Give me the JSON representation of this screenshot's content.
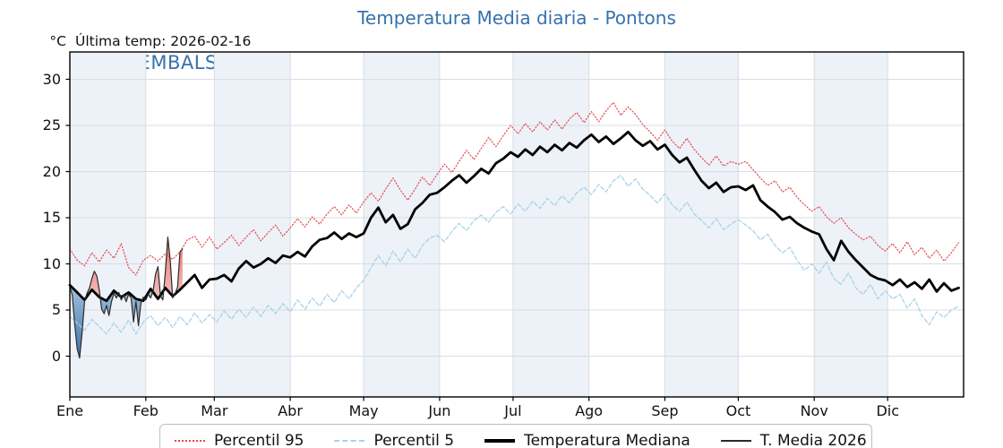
{
  "header": {
    "title": "Temperatura Media diaria - Pontons",
    "unit_label": "°C",
    "last_temp_label": "Última temp: 2026-02-16",
    "watermark": "WWW.EMBALSES.NET"
  },
  "legend": {
    "items": [
      {
        "id": "percentil95",
        "label": "Percentil 95",
        "marker": {
          "style": "dotted",
          "color": "#e3494e",
          "thickness": 2
        }
      },
      {
        "id": "percentil5",
        "label": "Percentil 5",
        "marker": {
          "style": "dashed",
          "color": "#a8d3e7",
          "thickness": 2
        }
      },
      {
        "id": "mediana",
        "label": "Temperatura Mediana",
        "marker": {
          "style": "solid",
          "color": "#000000",
          "thickness": 4
        }
      },
      {
        "id": "t2026",
        "label": "T. Media 2026",
        "marker": {
          "style": "solid",
          "color": "#2b2b2b",
          "thickness": 2
        }
      }
    ]
  },
  "chart_data": {
    "type": "line",
    "title": "Temperatura Media diaria - Pontons",
    "ylabel": "°C",
    "xlabel": "",
    "ylim": [
      -4.4,
      33
    ],
    "xlim_days": [
      0,
      365
    ],
    "y_ticks": [
      0,
      5,
      10,
      15,
      20,
      25,
      30
    ],
    "grid": true,
    "legend_position": "bottom",
    "months": [
      {
        "label": "Ene",
        "start_day": 0
      },
      {
        "label": "Feb",
        "start_day": 31
      },
      {
        "label": "Mar",
        "start_day": 59
      },
      {
        "label": "Abr",
        "start_day": 90
      },
      {
        "label": "May",
        "start_day": 120
      },
      {
        "label": "Jun",
        "start_day": 151
      },
      {
        "label": "Jul",
        "start_day": 181
      },
      {
        "label": "Ago",
        "start_day": 212
      },
      {
        "label": "Sep",
        "start_day": 243
      },
      {
        "label": "Oct",
        "start_day": 273
      },
      {
        "label": "Nov",
        "start_day": 304
      },
      {
        "label": "Dic",
        "start_day": 334
      }
    ],
    "shaded_month_indexes": [
      0,
      2,
      4,
      6,
      8,
      10
    ],
    "colors": {
      "band": "#edf1f8",
      "grid": "#d9dde2",
      "title": "#3572ae",
      "watermark": "#3572ae",
      "fill_above_top": "#df5a55",
      "fill_above_bottom": "#f6c6c4",
      "fill_below_top": "#a6c4de",
      "fill_below_bottom": "#1f5c9e"
    },
    "climatology_days": [
      0,
      3,
      6,
      9,
      12,
      15,
      18,
      21,
      24,
      27,
      30,
      33,
      36,
      39,
      42,
      45,
      48,
      51,
      54,
      57,
      60,
      63,
      66,
      69,
      72,
      75,
      78,
      81,
      84,
      87,
      90,
      93,
      96,
      99,
      102,
      105,
      108,
      111,
      114,
      117,
      120,
      123,
      126,
      129,
      132,
      135,
      138,
      141,
      144,
      147,
      150,
      153,
      156,
      159,
      162,
      165,
      168,
      171,
      174,
      177,
      180,
      183,
      186,
      189,
      192,
      195,
      198,
      201,
      204,
      207,
      210,
      213,
      216,
      219,
      222,
      225,
      228,
      231,
      234,
      237,
      240,
      243,
      246,
      249,
      252,
      255,
      258,
      261,
      264,
      267,
      270,
      273,
      276,
      279,
      282,
      285,
      288,
      291,
      294,
      297,
      300,
      303,
      306,
      309,
      312,
      315,
      318,
      321,
      324,
      327,
      330,
      333,
      336,
      339,
      342,
      345,
      348,
      351,
      354,
      357,
      360,
      363
    ],
    "series": {
      "percentil95": {
        "name": "Percentil 95",
        "color": "#e3494e",
        "width": 1.2,
        "dash": "1.2 2.3",
        "values": [
          11.6,
          10.4,
          9.8,
          11.2,
          10.2,
          11.5,
          10.6,
          12.2,
          9.6,
          8.8,
          10.4,
          10.9,
          10.3,
          11.1,
          10.5,
          11.3,
          12.6,
          13.0,
          11.8,
          12.9,
          11.6,
          12.3,
          13.1,
          12.0,
          12.9,
          13.7,
          12.5,
          13.4,
          14.2,
          13.0,
          13.9,
          14.9,
          14.0,
          15.1,
          14.3,
          15.4,
          16.2,
          15.3,
          16.4,
          15.5,
          16.7,
          17.7,
          16.8,
          18.1,
          19.3,
          18.0,
          16.9,
          18.1,
          19.4,
          18.5,
          19.7,
          20.8,
          19.9,
          21.1,
          22.3,
          21.3,
          22.5,
          23.7,
          22.7,
          23.9,
          25.0,
          24.1,
          25.2,
          24.3,
          25.4,
          24.5,
          25.6,
          24.6,
          25.7,
          26.4,
          25.3,
          26.5,
          25.4,
          26.6,
          27.5,
          26.1,
          27.0,
          26.2,
          25.1,
          24.3,
          23.4,
          24.5,
          23.3,
          22.5,
          23.6,
          22.4,
          21.5,
          20.7,
          21.7,
          20.6,
          21.1,
          20.8,
          21.1,
          20.2,
          19.3,
          18.5,
          19.0,
          17.8,
          18.3,
          17.2,
          16.4,
          15.7,
          16.2,
          15.1,
          14.4,
          15.0,
          13.9,
          13.2,
          12.6,
          13.0,
          12.0,
          11.4,
          12.2,
          11.2,
          12.4,
          11.0,
          11.8,
          10.6,
          11.5,
          10.3,
          11.2,
          12.3
        ]
      },
      "percentil5": {
        "name": "Percentil 5",
        "color": "#a8d3e7",
        "width": 1.3,
        "dash": "4.5 2.6",
        "values": [
          4.3,
          3.6,
          2.8,
          4.0,
          3.2,
          2.4,
          3.6,
          2.6,
          3.9,
          2.4,
          3.7,
          4.4,
          3.3,
          4.2,
          3.1,
          4.3,
          3.4,
          4.7,
          3.6,
          4.5,
          3.7,
          4.9,
          4.0,
          5.1,
          4.2,
          5.3,
          4.3,
          5.5,
          4.6,
          5.7,
          4.8,
          6.1,
          5.1,
          6.3,
          5.4,
          6.7,
          5.8,
          7.1,
          6.2,
          7.4,
          8.2,
          9.6,
          10.9,
          9.8,
          11.4,
          10.2,
          11.6,
          10.6,
          12.0,
          12.8,
          13.1,
          12.4,
          13.5,
          14.4,
          13.6,
          14.7,
          15.3,
          14.5,
          15.6,
          16.2,
          15.4,
          16.5,
          15.7,
          16.8,
          16.0,
          17.1,
          16.3,
          17.4,
          16.6,
          17.7,
          18.3,
          17.5,
          18.6,
          17.8,
          19.0,
          19.6,
          18.4,
          19.2,
          18.1,
          17.4,
          16.6,
          17.6,
          16.4,
          15.7,
          16.7,
          15.4,
          14.7,
          13.9,
          14.9,
          13.7,
          14.3,
          14.8,
          14.2,
          13.6,
          12.6,
          13.2,
          12.0,
          11.2,
          11.8,
          10.4,
          9.3,
          10.0,
          9.0,
          10.2,
          8.4,
          7.8,
          9.0,
          7.4,
          6.7,
          7.8,
          6.2,
          7.1,
          6.2,
          6.7,
          5.2,
          6.2,
          4.4,
          3.4,
          4.8,
          4.2,
          5.0,
          5.4
        ]
      },
      "mediana": {
        "name": "Temperatura Mediana",
        "color": "#000000",
        "width": 2.8,
        "values": [
          7.7,
          6.9,
          6.1,
          7.2,
          6.4,
          6.0,
          7.1,
          6.4,
          6.9,
          6.2,
          6.0,
          7.3,
          6.2,
          7.4,
          6.5,
          7.2,
          8.0,
          8.8,
          7.4,
          8.3,
          8.4,
          8.8,
          8.1,
          9.5,
          10.3,
          9.6,
          10.0,
          10.6,
          10.1,
          10.9,
          10.7,
          11.3,
          10.8,
          11.9,
          12.6,
          12.8,
          13.4,
          12.7,
          13.3,
          12.9,
          13.3,
          15.0,
          16.1,
          14.5,
          15.3,
          13.8,
          14.3,
          15.9,
          16.6,
          17.5,
          17.7,
          18.3,
          19.0,
          19.6,
          18.8,
          19.5,
          20.3,
          19.8,
          20.9,
          21.4,
          22.1,
          21.6,
          22.4,
          21.8,
          22.7,
          22.1,
          22.9,
          22.3,
          23.1,
          22.6,
          23.4,
          24.0,
          23.2,
          23.8,
          23.0,
          23.6,
          24.3,
          23.4,
          22.8,
          23.3,
          22.4,
          22.9,
          21.8,
          21.0,
          21.5,
          20.2,
          19.0,
          18.2,
          18.8,
          17.8,
          18.3,
          18.4,
          18.0,
          18.5,
          16.9,
          16.2,
          15.6,
          14.8,
          15.1,
          14.4,
          13.9,
          13.5,
          13.2,
          11.6,
          10.4,
          12.5,
          11.3,
          10.4,
          9.6,
          8.8,
          8.4,
          8.2,
          7.7,
          8.3,
          7.5,
          8.0,
          7.3,
          8.3,
          7.0,
          7.9,
          7.1,
          7.4
        ]
      },
      "t_media_2026": {
        "name": "T. Media 2026",
        "color": "#2b2b2b",
        "width": 1.2,
        "last_date": "2026-02-16",
        "days": [
          0,
          1,
          2,
          3,
          4,
          5,
          6,
          7,
          8,
          9,
          10,
          11,
          12,
          13,
          14,
          15,
          16,
          17,
          18,
          19,
          20,
          21,
          22,
          23,
          24,
          25,
          26,
          27,
          28,
          29,
          30,
          31,
          32,
          33,
          34,
          35,
          36,
          37,
          38,
          39,
          40,
          41,
          42,
          43,
          44,
          45,
          46
        ],
        "values": [
          7.6,
          6.6,
          3.4,
          0.8,
          -0.2,
          2.6,
          5.9,
          6.8,
          7.4,
          8.4,
          9.2,
          8.7,
          7.2,
          5.1,
          4.6,
          5.5,
          4.4,
          5.9,
          6.8,
          6.3,
          6.9,
          6.1,
          6.6,
          5.9,
          6.7,
          6.3,
          3.7,
          5.9,
          3.3,
          5.7,
          6.4,
          6.1,
          6.7,
          6.3,
          7.1,
          8.9,
          9.7,
          6.5,
          6.1,
          9.1,
          12.9,
          10.4,
          6.3,
          6.8,
          7.5,
          11.3,
          11.6
        ]
      }
    }
  }
}
